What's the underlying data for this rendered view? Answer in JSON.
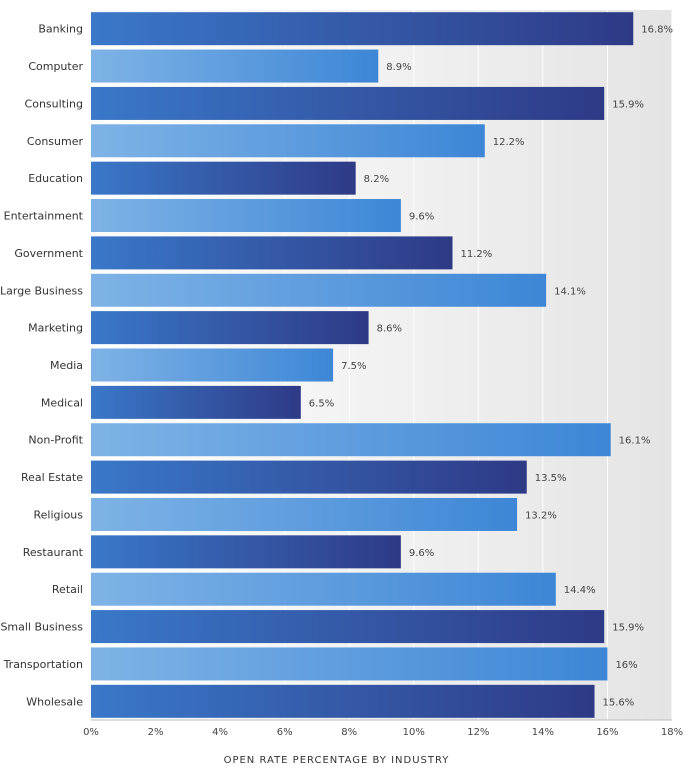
{
  "chart_data": {
    "type": "bar",
    "orientation": "horizontal",
    "title": "",
    "xlabel": "OPEN RATE PERCENTAGE BY INDUSTRY",
    "ylabel": "",
    "categories": [
      "Banking",
      "Computer",
      "Consulting",
      "Consumer",
      "Education",
      "Entertainment",
      "Government",
      "Large Business",
      "Marketing",
      "Media",
      "Medical",
      "Non-Profit",
      "Real Estate",
      "Religious",
      "Restaurant",
      "Retail",
      "Small Business",
      "Transportation",
      "Wholesale"
    ],
    "values": [
      16.8,
      8.9,
      15.9,
      12.2,
      8.2,
      9.6,
      11.2,
      14.1,
      8.6,
      7.5,
      6.5,
      16.1,
      13.5,
      13.2,
      9.6,
      14.4,
      15.9,
      16,
      15.6
    ],
    "value_labels": [
      "16.8%",
      "8.9%",
      "15.9%",
      "12.2%",
      "8.2%",
      "9.6%",
      "11.2%",
      "14.1%",
      "8.6%",
      "7.5%",
      "6.5%",
      "16.1%",
      "13.5%",
      "13.2%",
      "9.6%",
      "14.4%",
      "15.9%",
      "16%",
      "15.6%"
    ],
    "xlim": [
      0,
      18
    ],
    "x_ticks": [
      0,
      2,
      4,
      6,
      8,
      10,
      12,
      14,
      16,
      18
    ],
    "x_tick_labels": [
      "0%",
      "2%",
      "4%",
      "6%",
      "8%",
      "10%",
      "12%",
      "14%",
      "16%",
      "18%"
    ],
    "grid": true,
    "legend": "none",
    "colors": {
      "dark_bar_start": "#3a78c9",
      "dark_bar_end": "#2e3a86",
      "light_bar_start": "#7fb3e6",
      "light_bar_end": "#3d86d6",
      "plot_bg_start": "#ffffff",
      "plot_bg_end": "#e4e4e4",
      "grid": "#ffffff",
      "axis": "#bbbbbb"
    }
  }
}
